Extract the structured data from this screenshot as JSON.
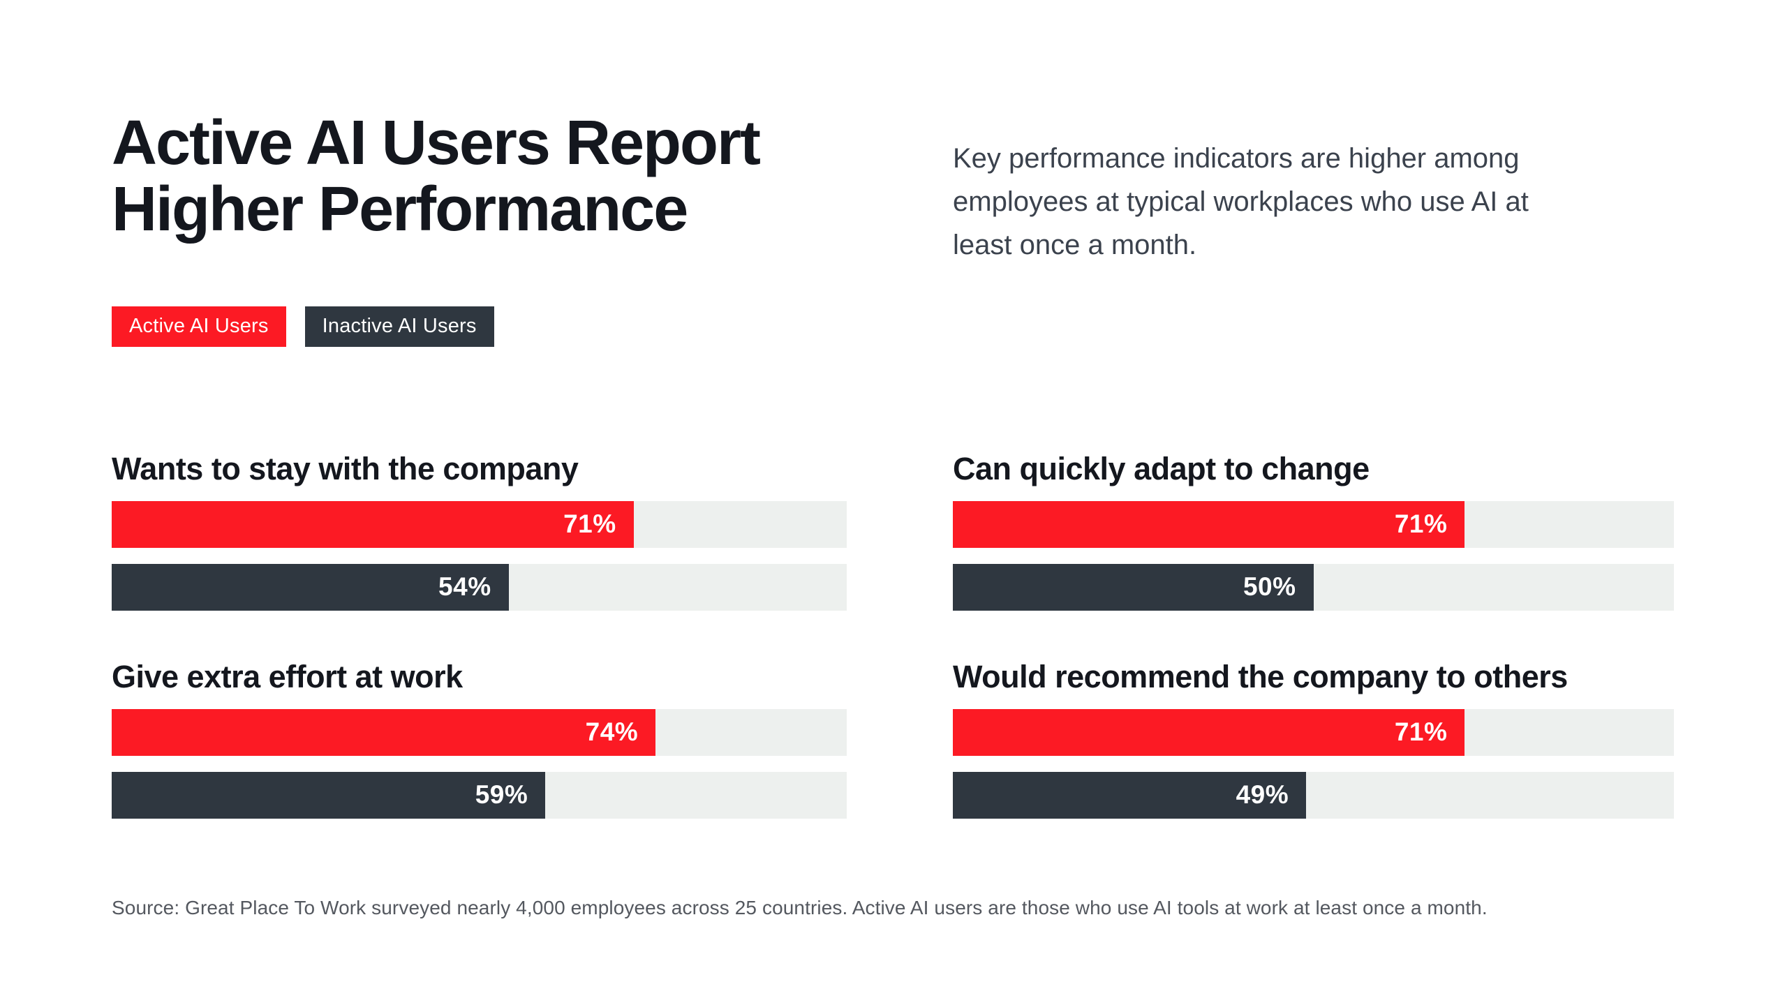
{
  "header": {
    "title_lines": [
      "Active AI Users Report",
      "Higher Performance"
    ],
    "subtitle_lines": [
      "Key performance indicators are higher among",
      "employees at typical workplaces who use AI at",
      "least once a month."
    ]
  },
  "legend": {
    "active_label": "Active AI Users",
    "inactive_label": "Inactive AI Users"
  },
  "colors": {
    "active_red": "#fc1a24",
    "inactive_slate": "#2f3740",
    "track_gray": "#edf0ee",
    "title_ink": "#14171e",
    "subtitle_gray": "#3b424d",
    "source_gray": "#54585f",
    "background": "#ffffff"
  },
  "sections": [
    {
      "heading": "Wants to stay with the company",
      "active": {
        "value": 71,
        "label": "71%"
      },
      "inactive": {
        "value": 54,
        "label": "54%"
      }
    },
    {
      "heading": "Can quickly adapt to change",
      "active": {
        "value": 71,
        "label": "71%"
      },
      "inactive": {
        "value": 50,
        "label": "50%"
      }
    },
    {
      "heading": "Give extra effort at work",
      "active": {
        "value": 74,
        "label": "74%"
      },
      "inactive": {
        "value": 59,
        "label": "59%"
      }
    },
    {
      "heading": "Would recommend the company to others",
      "active": {
        "value": 71,
        "label": "71%"
      },
      "inactive": {
        "value": 49,
        "label": "49%"
      }
    }
  ],
  "source": "Source: Great Place To Work surveyed nearly 4,000 employees across 25 countries. Active AI users are those who use AI tools at work at least once a month.",
  "chart_data": {
    "type": "bar",
    "orientation": "horizontal",
    "title": "Active AI Users Report Higher Performance",
    "subtitle": "Key performance indicators are higher among employees at typical workplaces who use AI at least once a month.",
    "categories": [
      "Wants to stay with the company",
      "Can quickly adapt to change",
      "Give extra effort at work",
      "Would recommend the company to others"
    ],
    "series": [
      {
        "name": "Active AI Users",
        "color": "#fc1a24",
        "values": [
          71,
          71,
          74,
          71
        ]
      },
      {
        "name": "Inactive AI Users",
        "color": "#2f3740",
        "values": [
          54,
          50,
          59,
          49
        ]
      }
    ],
    "unit": "%",
    "xlim": [
      0,
      100
    ],
    "grid": false,
    "legend_position": "top-left",
    "value_labels": "inside-end",
    "source_note": "Source: Great Place To Work surveyed nearly 4,000 employees across 25 countries. Active AI users are those who use AI tools at work at least once a month."
  }
}
